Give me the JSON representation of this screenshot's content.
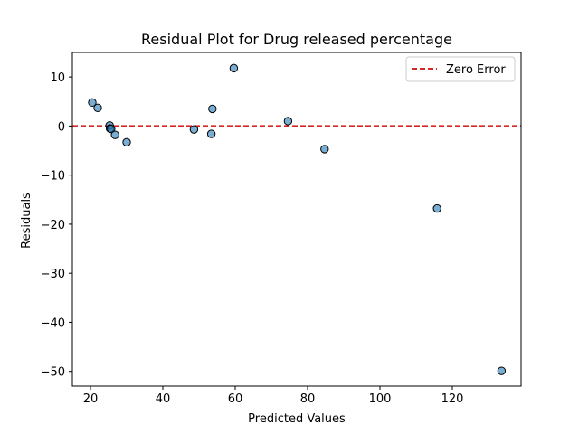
{
  "chart_data": {
    "type": "scatter",
    "title": "Residual Plot for Drug released percentage",
    "xlabel": "Predicted Values",
    "ylabel": "Residuals",
    "xlim": [
      15,
      139
    ],
    "ylim": [
      -53,
      15
    ],
    "xticks": [
      20,
      40,
      60,
      80,
      100,
      120
    ],
    "yticks": [
      10,
      0,
      -10,
      -20,
      -30,
      -40,
      -50
    ],
    "grid": false,
    "legend_position": "top-right",
    "reference_line": {
      "y": 0,
      "label": "Zero Error",
      "color": "#d62728",
      "style": "dashed"
    },
    "point_color": "#1f77b4",
    "points": [
      {
        "x": 20.5,
        "y": 4.8
      },
      {
        "x": 22.0,
        "y": 3.7
      },
      {
        "x": 25.3,
        "y": 0.1
      },
      {
        "x": 25.4,
        "y": -0.5
      },
      {
        "x": 25.7,
        "y": -0.6
      },
      {
        "x": 26.8,
        "y": -1.8
      },
      {
        "x": 30.0,
        "y": -3.3
      },
      {
        "x": 48.6,
        "y": -0.7
      },
      {
        "x": 53.4,
        "y": -1.6
      },
      {
        "x": 53.7,
        "y": 3.5
      },
      {
        "x": 59.6,
        "y": 11.8
      },
      {
        "x": 74.6,
        "y": 1.0
      },
      {
        "x": 84.7,
        "y": -4.7
      },
      {
        "x": 115.8,
        "y": -16.8
      },
      {
        "x": 133.6,
        "y": -49.9
      }
    ]
  }
}
